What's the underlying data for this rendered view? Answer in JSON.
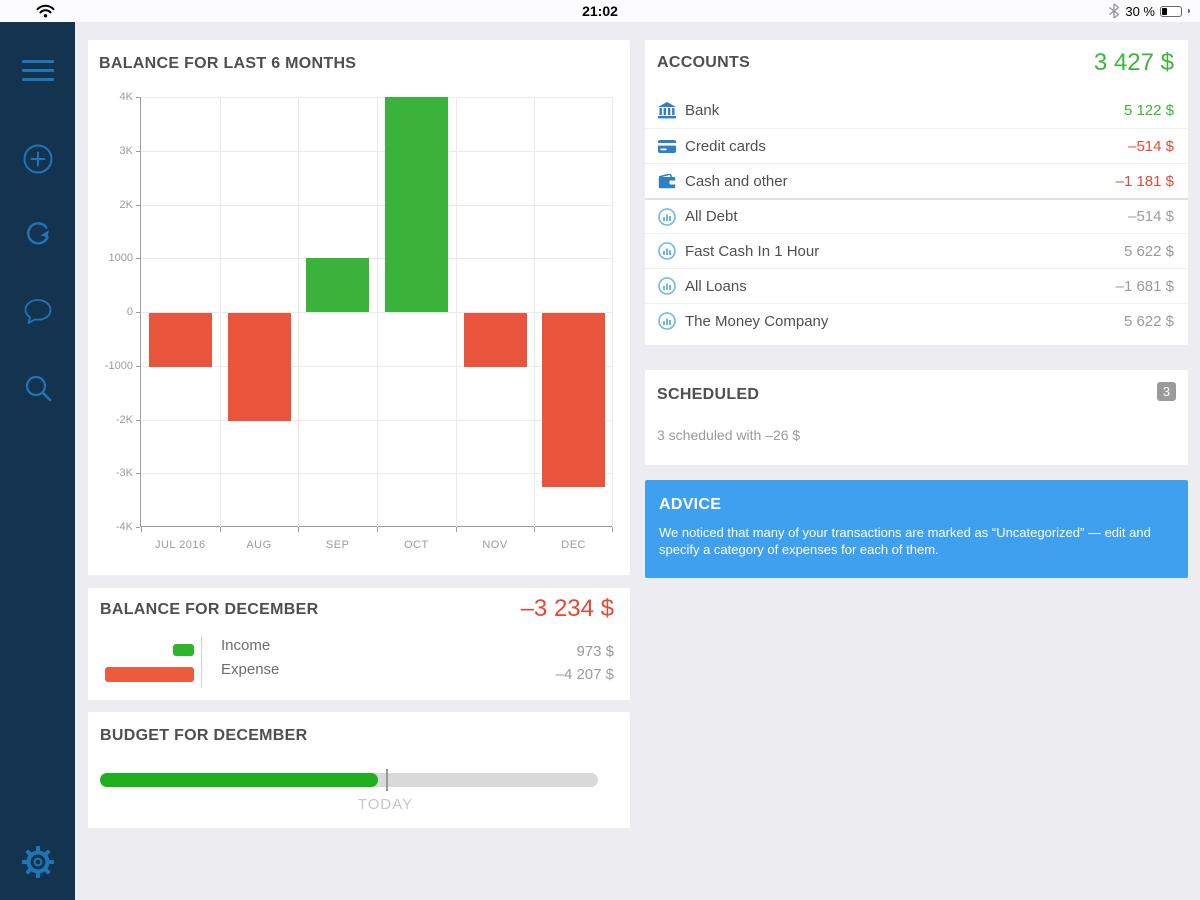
{
  "status_bar": {
    "time": "21:02",
    "battery_label": "30 %",
    "battery_level_pct": 30,
    "icons": [
      "wifi-icon",
      "bluetooth-icon",
      "battery-icon"
    ]
  },
  "sidebar": {
    "icons": [
      "hamburger-menu-icon",
      "add-circle-icon",
      "sync-icon",
      "chat-bubble-icon",
      "search-icon",
      "settings-gear-icon"
    ]
  },
  "colors": {
    "sidebar_navy": "#14334E",
    "icon_blue": "#1E76B8",
    "positive_green": "#3BB33B",
    "negative_red": "#E8553C",
    "green_text": "#3DB53C",
    "red_text": "#E34A33",
    "advice_blue": "#3FA0F0",
    "active_dot_blue": "#1598EC"
  },
  "chart_card": {
    "title": "BALANCE FOR LAST 6 MONTHS"
  },
  "chart_data": {
    "type": "bar",
    "title": "BALANCE FOR LAST 6 MONTHS",
    "categories": [
      "JUL 2016",
      "AUG",
      "SEP",
      "OCT",
      "NOV",
      "DEC"
    ],
    "values": [
      -1000,
      -2000,
      1000,
      4000,
      -1000,
      -3234
    ],
    "ylim": [
      -4000,
      4000
    ],
    "yticks": [
      {
        "value": 4000,
        "label": "4K"
      },
      {
        "value": 3000,
        "label": "3K"
      },
      {
        "value": 2000,
        "label": "2K"
      },
      {
        "value": 1000,
        "label": "1000"
      },
      {
        "value": 0,
        "label": "0"
      },
      {
        "value": -1000,
        "label": "-1000"
      },
      {
        "value": -2000,
        "label": "-2K"
      },
      {
        "value": -3000,
        "label": "-3K"
      },
      {
        "value": -4000,
        "label": "-4K"
      }
    ],
    "grid": true,
    "positive_color": "#3BB33B",
    "negative_color": "#E8553C"
  },
  "pagination": {
    "count": 3,
    "active_index": 2
  },
  "balance_december": {
    "title": "BALANCE FOR DECEMBER",
    "total": "–3 234 $",
    "income_label": "Income",
    "expense_label": "Expense",
    "income_value": "973 $",
    "expense_value": "–4 207 $",
    "income": 973,
    "expense": 4207
  },
  "budget": {
    "title": "BUDGET FOR DECEMBER",
    "progress_pct": 55.8,
    "today_pct": 57.4,
    "today_label": "TODAY"
  },
  "accounts": {
    "title": "ACCOUNTS",
    "total": "3 427 $",
    "items": [
      {
        "label": "Bank",
        "value": "5 122 $",
        "tone": "green",
        "icon": "bank-icon"
      },
      {
        "label": "Credit cards",
        "value": "–514 $",
        "tone": "red",
        "icon": "credit-card-icon"
      },
      {
        "label": "Cash and other",
        "value": "–1 181 $",
        "tone": "red",
        "icon": "wallet-icon"
      },
      {
        "label": "All Debt",
        "value": "–514 $",
        "tone": "gray",
        "icon": "chart-circle-icon"
      },
      {
        "label": "Fast Cash In 1 Hour",
        "value": "5 622 $",
        "tone": "gray",
        "icon": "chart-circle-icon"
      },
      {
        "label": "All Loans",
        "value": "–1 681 $",
        "tone": "gray",
        "icon": "chart-circle-icon"
      },
      {
        "label": "The Money Company",
        "value": "5 622 $",
        "tone": "gray",
        "icon": "chart-circle-icon"
      }
    ]
  },
  "scheduled": {
    "title": "SCHEDULED",
    "badge": "3",
    "summary": "3 scheduled with –26 $"
  },
  "advice": {
    "title": "ADVICE",
    "text": "We noticed that many of your transactions are marked as “Uncategorized” — edit and specify a category of expenses for each of them."
  }
}
